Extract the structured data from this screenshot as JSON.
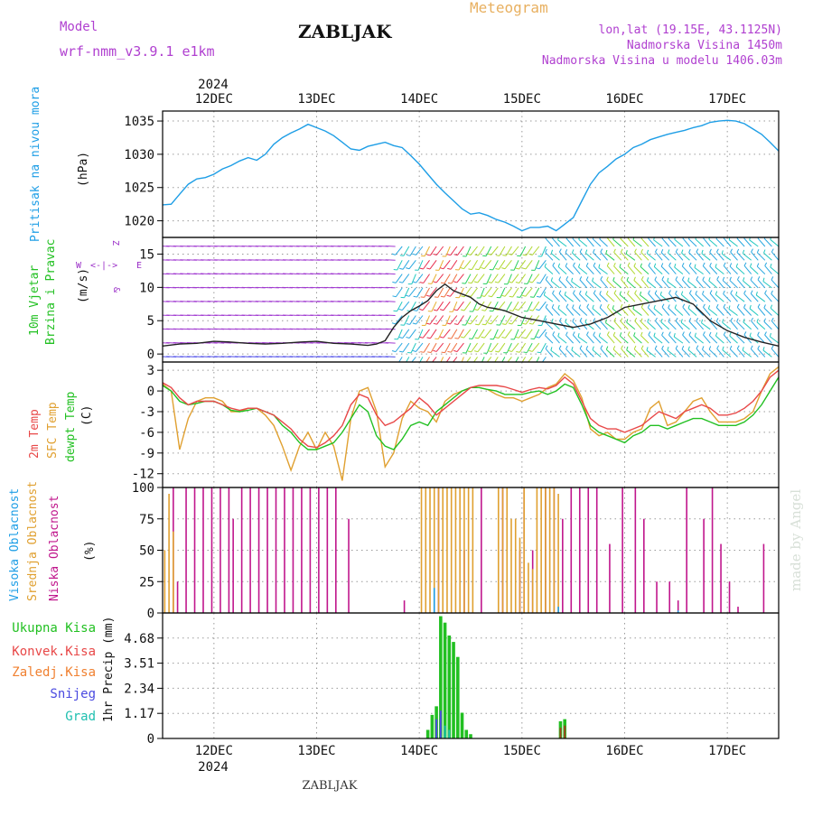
{
  "header": {
    "model_label": "Model",
    "model_value": "wrf-nmm_v3.9.1  e1km",
    "location": "ZABLJAK",
    "title": "Meteogram",
    "coords": "lon,lat (19.15E, 43.1125N)",
    "elevation": "Nadmorska Visina 1450m",
    "model_elevation": "Nadmorska Visina u modelu 1406.03m",
    "year": "2024",
    "footer_location": "ZABLJAK",
    "credit": "made by Angel"
  },
  "colors": {
    "pressure": "#1e9ee6",
    "wind_label": "#22c022",
    "wind_units": "#9b30c8",
    "temp2m": "#e84848",
    "sfc": "#e0a030",
    "dewpt": "#22c022",
    "high": "#1e9ee6",
    "mid": "#e0a030",
    "low": "#c0168c",
    "total": "#22c022",
    "conv": "#e84848",
    "frz": "#f08030",
    "snow": "#4a4ae0",
    "grad": "#20c0b0"
  },
  "x_axis": {
    "days": [
      "12DEC",
      "13DEC",
      "14DEC",
      "15DEC",
      "16DEC",
      "17DEC"
    ],
    "day_hours": [
      12,
      36,
      60,
      84,
      108,
      132
    ],
    "hours_range": [
      0,
      144
    ]
  },
  "chart_data": [
    {
      "type": "line",
      "id": "pressure",
      "ylabel": "Pritisak na nivou mora",
      "units": "(hPa)",
      "ylim": [
        1017.5,
        1036.5
      ],
      "yticks": [
        1020,
        1025,
        1030,
        1035
      ],
      "grid": true,
      "x": [
        0,
        2,
        4,
        6,
        8,
        10,
        12,
        14,
        16,
        18,
        20,
        22,
        24,
        26,
        28,
        30,
        32,
        34,
        36,
        38,
        40,
        42,
        44,
        46,
        48,
        50,
        52,
        54,
        56,
        58,
        60,
        62,
        64,
        66,
        68,
        70,
        72,
        74,
        76,
        78,
        80,
        82,
        84,
        86,
        88,
        90,
        92,
        94,
        96,
        98,
        100,
        102,
        104,
        106,
        108,
        110,
        112,
        114,
        116,
        118,
        120,
        122,
        124,
        126,
        128,
        130,
        132,
        134,
        136,
        138,
        140,
        142,
        144
      ],
      "series": [
        {
          "values": [
            1022.4,
            1022.5,
            1024,
            1025.5,
            1026.3,
            1026.5,
            1027,
            1027.8,
            1028.3,
            1029,
            1029.5,
            1029.1,
            1030,
            1031.5,
            1032.5,
            1033.2,
            1033.8,
            1034.5,
            1034,
            1033.5,
            1032.8,
            1031.8,
            1030.8,
            1030.6,
            1031.2,
            1031.5,
            1031.8,
            1031.3,
            1031,
            1029.8,
            1028.5,
            1027,
            1025.5,
            1024.2,
            1023,
            1021.8,
            1021,
            1021.2,
            1020.8,
            1020.2,
            1019.8,
            1019.2,
            1018.5,
            1019,
            1019,
            1019.2,
            1018.5,
            1019.5,
            1020.5,
            1023,
            1025.5,
            1027.2,
            1028.2,
            1029.3,
            1030,
            1031,
            1031.5,
            1032.2,
            1032.6,
            1033,
            1033.3,
            1033.6,
            1034,
            1034.3,
            1034.8,
            1035,
            1035.1,
            1035,
            1034.6,
            1033.8,
            1033,
            1031.8,
            1030.5
          ]
        }
      ]
    },
    {
      "type": "line",
      "id": "wind",
      "ylabel1": "10m Vjetar",
      "ylabel2": "Brzina i Pravac",
      "units": "(m/s)",
      "compass": {
        "n": "Z",
        "w": "W",
        "e": "E",
        "s": "&"
      },
      "ylim": [
        -1.2,
        17.5
      ],
      "yticks": [
        0,
        5,
        10,
        15
      ],
      "grid": true,
      "x": [
        0,
        4,
        8,
        12,
        16,
        20,
        24,
        28,
        32,
        36,
        40,
        44,
        48,
        50,
        52,
        54,
        56,
        58,
        60,
        62,
        64,
        66,
        68,
        70,
        72,
        74,
        76,
        78,
        80,
        84,
        88,
        92,
        96,
        100,
        104,
        108,
        112,
        116,
        120,
        124,
        128,
        132,
        136,
        140,
        144
      ],
      "series": [
        {
          "values": [
            1.2,
            1.5,
            1.6,
            1.9,
            1.8,
            1.6,
            1.5,
            1.6,
            1.8,
            1.9,
            1.6,
            1.5,
            1.3,
            1.5,
            2,
            4,
            5.5,
            6.5,
            7.2,
            8,
            9.5,
            10.5,
            9.5,
            9,
            8.5,
            7.5,
            7,
            6.8,
            6.5,
            5.5,
            5,
            4.5,
            4,
            4.5,
            5.5,
            7,
            7.5,
            8,
            8.5,
            7.5,
            5,
            3.5,
            2.5,
            1.8,
            1.2
          ]
        }
      ]
    },
    {
      "type": "line",
      "id": "temperature",
      "ylabel1": "2m Temp",
      "ylabel2": "SFC Temp",
      "ylabel3": "dewpt Temp",
      "units": "(C)",
      "ylim": [
        -14,
        4.2
      ],
      "yticks": [
        3,
        0,
        -3,
        -6,
        -9,
        -12
      ],
      "grid": true,
      "x": [
        0,
        2,
        4,
        6,
        8,
        10,
        12,
        14,
        16,
        18,
        20,
        22,
        24,
        26,
        28,
        30,
        32,
        34,
        36,
        38,
        40,
        42,
        44,
        46,
        48,
        50,
        52,
        54,
        56,
        58,
        60,
        62,
        64,
        66,
        68,
        70,
        72,
        74,
        76,
        78,
        80,
        82,
        84,
        86,
        88,
        90,
        92,
        94,
        96,
        98,
        100,
        102,
        104,
        106,
        108,
        110,
        112,
        114,
        116,
        118,
        120,
        122,
        124,
        126,
        128,
        130,
        132,
        134,
        136,
        138,
        140,
        142,
        144
      ],
      "series": [
        {
          "name": "2m Temp",
          "values": [
            1.2,
            0.5,
            -1,
            -2,
            -1.5,
            -1.5,
            -1.5,
            -2,
            -2.5,
            -2.8,
            -2.5,
            -2.5,
            -3,
            -3.5,
            -4.5,
            -5.5,
            -7,
            -8,
            -8.2,
            -7.5,
            -6.5,
            -5,
            -2,
            -0.5,
            -1,
            -3.5,
            -5,
            -4.5,
            -3.5,
            -2.5,
            -1,
            -2,
            -3.5,
            -2.5,
            -1.5,
            -0.5,
            0.5,
            0.8,
            0.8,
            0.8,
            0.6,
            0.2,
            -0.2,
            0.2,
            0.5,
            0.3,
            0.8,
            2,
            1,
            -1.5,
            -4,
            -5,
            -5.5,
            -5.5,
            -6,
            -5.5,
            -5,
            -4,
            -3,
            -3.5,
            -4,
            -3,
            -2.5,
            -2,
            -2.5,
            -3.5,
            -3.5,
            -3.2,
            -2.5,
            -1.5,
            0,
            2,
            3
          ]
        },
        {
          "name": "SFC Temp",
          "values": [
            1,
            0,
            -8.5,
            -4,
            -1.5,
            -1,
            -1,
            -1.5,
            -3,
            -3,
            -2.5,
            -2.5,
            -3.5,
            -5,
            -8,
            -11.5,
            -8,
            -6,
            -8.5,
            -6,
            -8,
            -13,
            -4,
            0,
            0.5,
            -3,
            -11,
            -9,
            -4,
            -1.5,
            -2.5,
            -3,
            -4.5,
            -1.5,
            -0.5,
            0,
            0.5,
            0.5,
            0.2,
            -0.5,
            -1,
            -1,
            -1.5,
            -1,
            -0.5,
            0.5,
            1,
            2.5,
            1.5,
            -1,
            -5.5,
            -6.5,
            -6,
            -7,
            -7,
            -6,
            -5.5,
            -2.5,
            -1.5,
            -5,
            -4.5,
            -3,
            -1.5,
            -1,
            -3,
            -4.5,
            -4.5,
            -4.5,
            -4,
            -3,
            0,
            2.5,
            3.5
          ]
        },
        {
          "name": "dewpt Temp",
          "values": [
            0.8,
            0,
            -1.5,
            -2,
            -1.8,
            -1.5,
            -1.5,
            -2,
            -2.8,
            -3,
            -2.8,
            -2.5,
            -3,
            -3.5,
            -5,
            -6,
            -7.5,
            -8.5,
            -8.5,
            -8,
            -7.5,
            -6,
            -4,
            -2,
            -3,
            -6.5,
            -8,
            -8.5,
            -7,
            -5,
            -4.5,
            -5,
            -3,
            -2,
            -1,
            0,
            0.5,
            0.5,
            0.2,
            0,
            -0.5,
            -0.5,
            -0.5,
            -0.2,
            0,
            -0.5,
            0,
            1,
            0.5,
            -2,
            -5,
            -6,
            -6.5,
            -7,
            -7.5,
            -6.5,
            -6,
            -5,
            -5,
            -5.5,
            -5,
            -4.5,
            -4,
            -4,
            -4.5,
            -5,
            -5,
            -5,
            -4.5,
            -3.5,
            -2,
            0,
            2
          ]
        }
      ]
    },
    {
      "type": "bar",
      "id": "cloud",
      "ylabel1": "Visoka Oblacnost",
      "ylabel2": "Srednja Oblacnost",
      "ylabel3": "Niska Oblacnost",
      "units": "(%)",
      "ylim": [
        0,
        100
      ],
      "yticks": [
        0,
        25,
        50,
        75,
        100
      ],
      "grid": true,
      "series": [
        {
          "name": "Niska Oblacnost",
          "points": [
            [
              2,
              100
            ],
            [
              3,
              25
            ],
            [
              5,
              100
            ],
            [
              7,
              100
            ],
            [
              9,
              100
            ],
            [
              11,
              100
            ],
            [
              13,
              100
            ],
            [
              15,
              100
            ],
            [
              16,
              75
            ],
            [
              18,
              100
            ],
            [
              20,
              100
            ],
            [
              22,
              100
            ],
            [
              24,
              100
            ],
            [
              26,
              100
            ],
            [
              28,
              100
            ],
            [
              30,
              100
            ],
            [
              32,
              100
            ],
            [
              34,
              100
            ],
            [
              36,
              100
            ],
            [
              38,
              100
            ],
            [
              40,
              100
            ],
            [
              43,
              75
            ],
            [
              56,
              10
            ],
            [
              64,
              100
            ],
            [
              70,
              50
            ],
            [
              74,
              100
            ],
            [
              79,
              100
            ],
            [
              83,
              50
            ],
            [
              84,
              100
            ],
            [
              86,
              50
            ],
            [
              89,
              100
            ],
            [
              91,
              100
            ],
            [
              93,
              75
            ],
            [
              95,
              100
            ],
            [
              97,
              100
            ],
            [
              99,
              100
            ],
            [
              101,
              100
            ],
            [
              104,
              55
            ],
            [
              107,
              100
            ],
            [
              110,
              100
            ],
            [
              112,
              75
            ],
            [
              115,
              25
            ],
            [
              118,
              25
            ],
            [
              120,
              10
            ],
            [
              122,
              100
            ],
            [
              126,
              75
            ],
            [
              128,
              100
            ],
            [
              130,
              55
            ],
            [
              132,
              25
            ],
            [
              134,
              5
            ],
            [
              140,
              55
            ]
          ]
        },
        {
          "name": "Srednja Oblacnost",
          "points": [
            [
              0,
              50
            ],
            [
              1,
              95
            ],
            [
              2,
              65
            ],
            [
              60,
              100
            ],
            [
              61,
              100
            ],
            [
              62,
              100
            ],
            [
              63,
              100
            ],
            [
              64,
              100
            ],
            [
              65,
              100
            ],
            [
              66,
              100
            ],
            [
              67,
              100
            ],
            [
              68,
              100
            ],
            [
              69,
              100
            ],
            [
              70,
              100
            ],
            [
              71,
              100
            ],
            [
              72,
              100
            ],
            [
              78,
              100
            ],
            [
              79,
              100
            ],
            [
              80,
              100
            ],
            [
              81,
              75
            ],
            [
              82,
              75
            ],
            [
              83,
              60
            ],
            [
              84,
              100
            ],
            [
              85,
              40
            ],
            [
              86,
              35
            ],
            [
              87,
              100
            ],
            [
              88,
              100
            ],
            [
              89,
              100
            ],
            [
              90,
              100
            ],
            [
              91,
              100
            ],
            [
              92,
              95
            ]
          ]
        },
        {
          "name": "Visoka Oblacnost",
          "points": [
            [
              63,
              20
            ],
            [
              92,
              5
            ],
            [
              120,
              2
            ]
          ]
        }
      ]
    },
    {
      "type": "bar",
      "id": "precipitation",
      "labels": [
        "Ukupna Kisa",
        "Konvek.Kisa",
        "Zaledj.Kisa",
        "Snijeg",
        "Grad"
      ],
      "ylabel": "1hr Precip (mm)",
      "ylim": [
        0,
        5.85
      ],
      "yticks": [
        0,
        1.17,
        2.34,
        3.51,
        4.68
      ],
      "grid": true,
      "series": [
        {
          "name": "Ukupna Kisa",
          "points": [
            [
              62,
              0.4
            ],
            [
              63,
              1.1
            ],
            [
              64,
              1.5
            ],
            [
              65,
              5.7
            ],
            [
              66,
              5.4
            ],
            [
              67,
              4.8
            ],
            [
              68,
              4.5
            ],
            [
              69,
              3.8
            ],
            [
              70,
              1.2
            ],
            [
              71,
              0.4
            ],
            [
              72,
              0.2
            ],
            [
              93,
              0.8
            ],
            [
              94,
              0.9
            ]
          ]
        },
        {
          "name": "Konvek.Kisa",
          "points": [
            [
              93,
              0.5
            ],
            [
              94,
              0.6
            ]
          ]
        },
        {
          "name": "Snijeg",
          "points": [
            [
              64,
              0.9
            ],
            [
              65,
              1.3
            ]
          ]
        },
        {
          "name": "Grad",
          "points": [
            [
              66,
              0.6
            ],
            [
              67,
              0.4
            ]
          ]
        }
      ]
    }
  ]
}
